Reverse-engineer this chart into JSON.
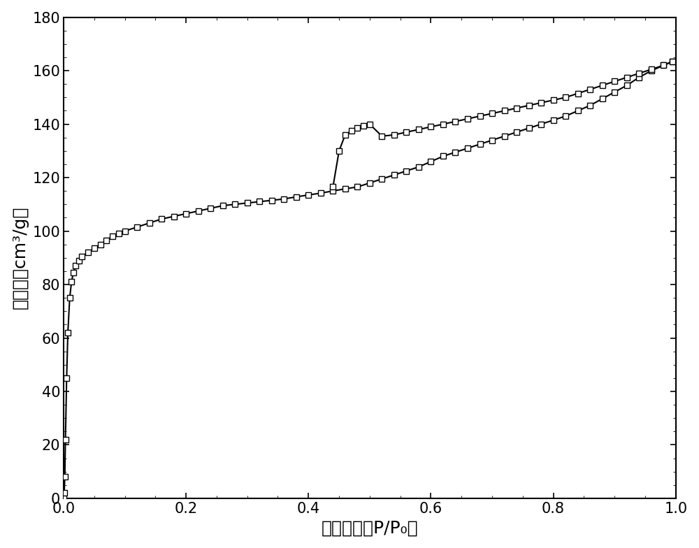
{
  "adsorption_x": [
    0.0005,
    0.001,
    0.002,
    0.003,
    0.005,
    0.007,
    0.01,
    0.013,
    0.016,
    0.02,
    0.025,
    0.03,
    0.04,
    0.05,
    0.06,
    0.07,
    0.08,
    0.09,
    0.1,
    0.12,
    0.14,
    0.16,
    0.18,
    0.2,
    0.22,
    0.24,
    0.26,
    0.28,
    0.3,
    0.32,
    0.34,
    0.36,
    0.38,
    0.4,
    0.42,
    0.44,
    0.46,
    0.48,
    0.5,
    0.52,
    0.54,
    0.56,
    0.58,
    0.6,
    0.62,
    0.64,
    0.66,
    0.68,
    0.7,
    0.72,
    0.74,
    0.76,
    0.78,
    0.8,
    0.82,
    0.84,
    0.86,
    0.88,
    0.9,
    0.92,
    0.94,
    0.96,
    0.98,
    0.995
  ],
  "adsorption_y": [
    0.5,
    2.0,
    8.0,
    22.0,
    45.0,
    62.0,
    75.0,
    81.0,
    84.5,
    87.0,
    89.0,
    90.5,
    92.0,
    93.5,
    95.0,
    96.5,
    98.0,
    99.0,
    100.0,
    101.5,
    103.0,
    104.5,
    105.5,
    106.5,
    107.5,
    108.5,
    109.5,
    110.0,
    110.5,
    111.0,
    111.5,
    112.0,
    112.8,
    113.5,
    114.2,
    115.0,
    115.8,
    116.5,
    118.0,
    119.5,
    121.0,
    122.5,
    124.0,
    126.0,
    128.0,
    129.5,
    131.0,
    132.5,
    134.0,
    135.5,
    137.0,
    138.5,
    140.0,
    141.5,
    143.0,
    145.0,
    147.0,
    149.5,
    152.0,
    154.5,
    157.5,
    160.0,
    162.0,
    163.5
  ],
  "desorption_x": [
    0.995,
    0.98,
    0.96,
    0.94,
    0.92,
    0.9,
    0.88,
    0.86,
    0.84,
    0.82,
    0.8,
    0.78,
    0.76,
    0.74,
    0.72,
    0.7,
    0.68,
    0.66,
    0.64,
    0.62,
    0.6,
    0.58,
    0.56,
    0.54,
    0.52,
    0.5,
    0.49,
    0.48,
    0.47,
    0.46,
    0.45,
    0.44
  ],
  "desorption_y": [
    163.5,
    162.0,
    160.5,
    159.0,
    157.5,
    156.0,
    154.5,
    153.0,
    151.5,
    150.0,
    149.0,
    148.0,
    147.0,
    146.0,
    145.0,
    144.0,
    143.0,
    142.0,
    141.0,
    140.0,
    139.0,
    138.0,
    137.0,
    136.0,
    135.5,
    140.0,
    139.5,
    138.5,
    137.5,
    136.0,
    130.0,
    116.5
  ],
  "xlabel": "相对压力（P/P₀）",
  "ylabel": "吸附量（cm³/g）",
  "xlim": [
    0.0,
    1.0
  ],
  "ylim": [
    0,
    180
  ],
  "xticks": [
    0.0,
    0.2,
    0.4,
    0.6,
    0.8,
    1.0
  ],
  "yticks": [
    0,
    20,
    40,
    60,
    80,
    100,
    120,
    140,
    160,
    180
  ],
  "line_color": "#000000",
  "marker": "s",
  "markersize": 6,
  "marker_facecolor": "#ffffff",
  "marker_edgecolor": "#000000",
  "marker_edgewidth": 1.0,
  "linewidth": 1.5,
  "background_color": "#ffffff",
  "xlabel_fontsize": 18,
  "ylabel_fontsize": 18,
  "tick_fontsize": 15,
  "figure_width": 10.0,
  "figure_height": 7.84
}
